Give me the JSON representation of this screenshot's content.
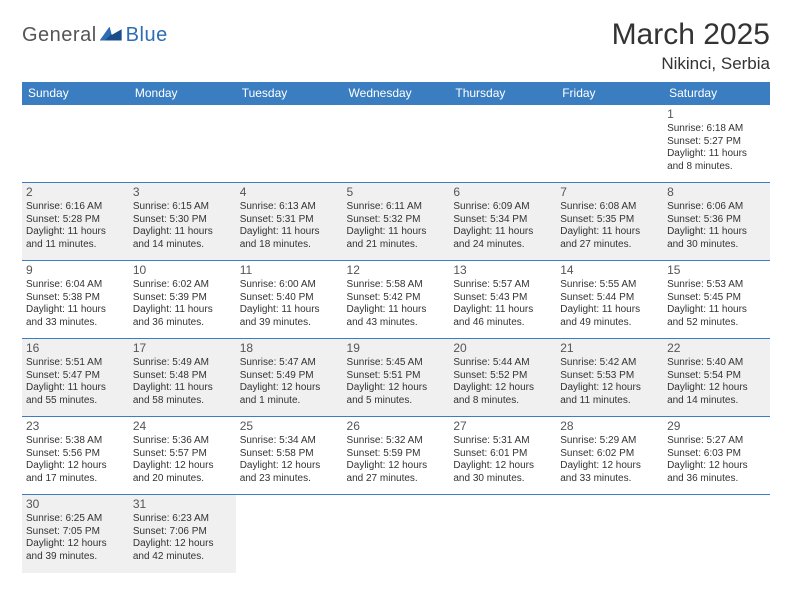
{
  "logo": {
    "part1": "General",
    "part2": "Blue"
  },
  "header": {
    "title": "March 2025",
    "location": "Nikinci, Serbia"
  },
  "colors": {
    "header_bg": "#3a7ec1",
    "header_fg": "#ffffff",
    "shade_bg": "#f0f0f0",
    "border": "#3a7ec1",
    "logo_gray": "#555555",
    "logo_blue": "#2d6db3"
  },
  "weekdays": [
    "Sunday",
    "Monday",
    "Tuesday",
    "Wednesday",
    "Thursday",
    "Friday",
    "Saturday"
  ],
  "weeks": [
    [
      null,
      null,
      null,
      null,
      null,
      null,
      {
        "n": "1",
        "sr": "Sunrise: 6:18 AM",
        "ss": "Sunset: 5:27 PM",
        "dl": "Daylight: 11 hours and 8 minutes."
      }
    ],
    [
      {
        "n": "2",
        "sr": "Sunrise: 6:16 AM",
        "ss": "Sunset: 5:28 PM",
        "dl": "Daylight: 11 hours and 11 minutes."
      },
      {
        "n": "3",
        "sr": "Sunrise: 6:15 AM",
        "ss": "Sunset: 5:30 PM",
        "dl": "Daylight: 11 hours and 14 minutes."
      },
      {
        "n": "4",
        "sr": "Sunrise: 6:13 AM",
        "ss": "Sunset: 5:31 PM",
        "dl": "Daylight: 11 hours and 18 minutes."
      },
      {
        "n": "5",
        "sr": "Sunrise: 6:11 AM",
        "ss": "Sunset: 5:32 PM",
        "dl": "Daylight: 11 hours and 21 minutes."
      },
      {
        "n": "6",
        "sr": "Sunrise: 6:09 AM",
        "ss": "Sunset: 5:34 PM",
        "dl": "Daylight: 11 hours and 24 minutes."
      },
      {
        "n": "7",
        "sr": "Sunrise: 6:08 AM",
        "ss": "Sunset: 5:35 PM",
        "dl": "Daylight: 11 hours and 27 minutes."
      },
      {
        "n": "8",
        "sr": "Sunrise: 6:06 AM",
        "ss": "Sunset: 5:36 PM",
        "dl": "Daylight: 11 hours and 30 minutes."
      }
    ],
    [
      {
        "n": "9",
        "sr": "Sunrise: 6:04 AM",
        "ss": "Sunset: 5:38 PM",
        "dl": "Daylight: 11 hours and 33 minutes."
      },
      {
        "n": "10",
        "sr": "Sunrise: 6:02 AM",
        "ss": "Sunset: 5:39 PM",
        "dl": "Daylight: 11 hours and 36 minutes."
      },
      {
        "n": "11",
        "sr": "Sunrise: 6:00 AM",
        "ss": "Sunset: 5:40 PM",
        "dl": "Daylight: 11 hours and 39 minutes."
      },
      {
        "n": "12",
        "sr": "Sunrise: 5:58 AM",
        "ss": "Sunset: 5:42 PM",
        "dl": "Daylight: 11 hours and 43 minutes."
      },
      {
        "n": "13",
        "sr": "Sunrise: 5:57 AM",
        "ss": "Sunset: 5:43 PM",
        "dl": "Daylight: 11 hours and 46 minutes."
      },
      {
        "n": "14",
        "sr": "Sunrise: 5:55 AM",
        "ss": "Sunset: 5:44 PM",
        "dl": "Daylight: 11 hours and 49 minutes."
      },
      {
        "n": "15",
        "sr": "Sunrise: 5:53 AM",
        "ss": "Sunset: 5:45 PM",
        "dl": "Daylight: 11 hours and 52 minutes."
      }
    ],
    [
      {
        "n": "16",
        "sr": "Sunrise: 5:51 AM",
        "ss": "Sunset: 5:47 PM",
        "dl": "Daylight: 11 hours and 55 minutes."
      },
      {
        "n": "17",
        "sr": "Sunrise: 5:49 AM",
        "ss": "Sunset: 5:48 PM",
        "dl": "Daylight: 11 hours and 58 minutes."
      },
      {
        "n": "18",
        "sr": "Sunrise: 5:47 AM",
        "ss": "Sunset: 5:49 PM",
        "dl": "Daylight: 12 hours and 1 minute."
      },
      {
        "n": "19",
        "sr": "Sunrise: 5:45 AM",
        "ss": "Sunset: 5:51 PM",
        "dl": "Daylight: 12 hours and 5 minutes."
      },
      {
        "n": "20",
        "sr": "Sunrise: 5:44 AM",
        "ss": "Sunset: 5:52 PM",
        "dl": "Daylight: 12 hours and 8 minutes."
      },
      {
        "n": "21",
        "sr": "Sunrise: 5:42 AM",
        "ss": "Sunset: 5:53 PM",
        "dl": "Daylight: 12 hours and 11 minutes."
      },
      {
        "n": "22",
        "sr": "Sunrise: 5:40 AM",
        "ss": "Sunset: 5:54 PM",
        "dl": "Daylight: 12 hours and 14 minutes."
      }
    ],
    [
      {
        "n": "23",
        "sr": "Sunrise: 5:38 AM",
        "ss": "Sunset: 5:56 PM",
        "dl": "Daylight: 12 hours and 17 minutes."
      },
      {
        "n": "24",
        "sr": "Sunrise: 5:36 AM",
        "ss": "Sunset: 5:57 PM",
        "dl": "Daylight: 12 hours and 20 minutes."
      },
      {
        "n": "25",
        "sr": "Sunrise: 5:34 AM",
        "ss": "Sunset: 5:58 PM",
        "dl": "Daylight: 12 hours and 23 minutes."
      },
      {
        "n": "26",
        "sr": "Sunrise: 5:32 AM",
        "ss": "Sunset: 5:59 PM",
        "dl": "Daylight: 12 hours and 27 minutes."
      },
      {
        "n": "27",
        "sr": "Sunrise: 5:31 AM",
        "ss": "Sunset: 6:01 PM",
        "dl": "Daylight: 12 hours and 30 minutes."
      },
      {
        "n": "28",
        "sr": "Sunrise: 5:29 AM",
        "ss": "Sunset: 6:02 PM",
        "dl": "Daylight: 12 hours and 33 minutes."
      },
      {
        "n": "29",
        "sr": "Sunrise: 5:27 AM",
        "ss": "Sunset: 6:03 PM",
        "dl": "Daylight: 12 hours and 36 minutes."
      }
    ],
    [
      {
        "n": "30",
        "sr": "Sunrise: 6:25 AM",
        "ss": "Sunset: 7:05 PM",
        "dl": "Daylight: 12 hours and 39 minutes."
      },
      {
        "n": "31",
        "sr": "Sunrise: 6:23 AM",
        "ss": "Sunset: 7:06 PM",
        "dl": "Daylight: 12 hours and 42 minutes."
      },
      null,
      null,
      null,
      null,
      null
    ]
  ]
}
